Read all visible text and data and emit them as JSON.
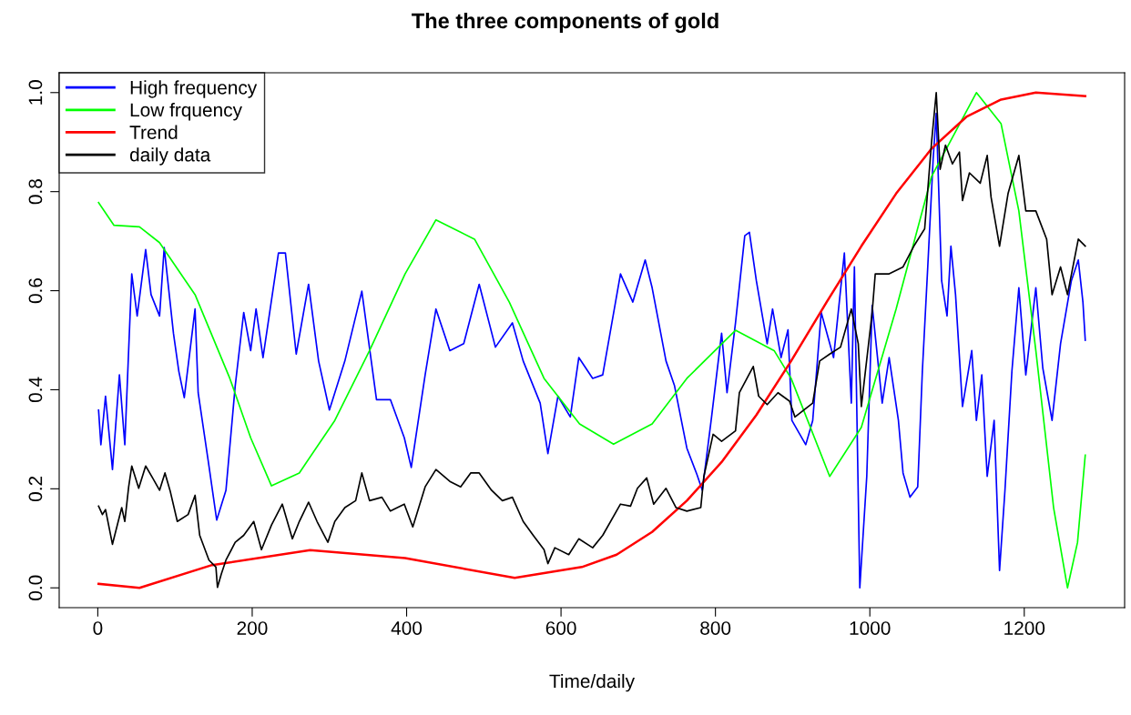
{
  "chart_data": {
    "type": "line",
    "title": "The three components of gold",
    "xlabel": "Time/daily",
    "xlim": [
      -50,
      1330
    ],
    "ylim": [
      -0.04,
      1.04
    ],
    "xticks": [
      0,
      200,
      400,
      600,
      800,
      1000,
      1200
    ],
    "yticks": [
      {
        "value": 0,
        "label": "0.0"
      },
      0.2,
      0.4,
      0.6,
      0.8,
      {
        "value": 1,
        "label": "1.0"
      }
    ],
    "grid": false,
    "legend": "top left",
    "marker": "none",
    "line_style": "solid",
    "series": [
      {
        "name": "High frequency",
        "color": "#0000ff",
        "x": [
          1,
          4,
          10,
          19,
          28,
          35,
          44,
          51,
          62,
          69,
          80,
          86,
          98,
          105,
          112,
          126,
          130,
          144,
          154,
          166,
          178,
          189,
          198,
          205,
          214,
          234,
          243,
          257,
          273,
          286,
          300,
          320,
          342,
          361,
          379,
          397,
          406,
          424,
          438,
          456,
          474,
          494,
          515,
          537,
          551,
          573,
          583,
          596,
          612,
          623,
          641,
          654,
          677,
          693,
          709,
          718,
          736,
          747,
          763,
          776,
          783,
          795,
          808,
          815,
          826,
          838,
          844,
          853,
          867,
          874,
          885,
          894,
          899,
          917,
          926,
          937,
          953,
          967,
          976,
          980,
          987,
          996,
          1003,
          1016,
          1025,
          1037,
          1043,
          1052,
          1062,
          1068,
          1075,
          1082,
          1086,
          1093,
          1100,
          1105,
          1111,
          1120,
          1132,
          1138,
          1145,
          1152,
          1161,
          1168,
          1175,
          1184,
          1193,
          1202,
          1215,
          1224,
          1236,
          1247,
          1261,
          1270,
          1276,
          1279
        ],
        "values": [
          0.359,
          0.289,
          0.387,
          0.239,
          0.43,
          0.289,
          0.634,
          0.549,
          0.683,
          0.592,
          0.549,
          0.687,
          0.514,
          0.437,
          0.384,
          0.563,
          0.394,
          0.246,
          0.137,
          0.197,
          0.408,
          0.556,
          0.479,
          0.563,
          0.465,
          0.676,
          0.676,
          0.472,
          0.613,
          0.458,
          0.359,
          0.458,
          0.599,
          0.38,
          0.38,
          0.303,
          0.243,
          0.43,
          0.563,
          0.479,
          0.493,
          0.613,
          0.486,
          0.535,
          0.458,
          0.373,
          0.271,
          0.387,
          0.345,
          0.465,
          0.423,
          0.43,
          0.634,
          0.577,
          0.662,
          0.606,
          0.458,
          0.408,
          0.282,
          0.229,
          0.197,
          0.345,
          0.514,
          0.394,
          0.535,
          0.711,
          0.718,
          0.62,
          0.493,
          0.563,
          0.465,
          0.521,
          0.338,
          0.289,
          0.338,
          0.556,
          0.465,
          0.676,
          0.373,
          0.648,
          0.0,
          0.225,
          0.57,
          0.373,
          0.465,
          0.338,
          0.232,
          0.183,
          0.204,
          0.437,
          0.648,
          0.866,
          0.958,
          0.62,
          0.549,
          0.69,
          0.592,
          0.366,
          0.479,
          0.338,
          0.43,
          0.225,
          0.338,
          0.035,
          0.197,
          0.437,
          0.606,
          0.43,
          0.606,
          0.444,
          0.338,
          0.493,
          0.62,
          0.662,
          0.577,
          0.5
        ]
      },
      {
        "name": "Low frquency",
        "color": "#00ff00",
        "x": [
          1,
          21,
          54,
          80,
          126,
          171,
          198,
          225,
          261,
          307,
          352,
          398,
          438,
          488,
          533,
          578,
          624,
          668,
          718,
          763,
          826,
          876,
          898,
          948,
          989,
          1034,
          1080,
          1138,
          1170,
          1193,
          1215,
          1238,
          1256,
          1269,
          1279
        ],
        "values": [
          0.778,
          0.732,
          0.729,
          0.697,
          0.592,
          0.423,
          0.303,
          0.206,
          0.232,
          0.338,
          0.479,
          0.634,
          0.743,
          0.704,
          0.577,
          0.423,
          0.331,
          0.29,
          0.331,
          0.423,
          0.52,
          0.479,
          0.423,
          0.225,
          0.324,
          0.563,
          0.831,
          1.0,
          0.937,
          0.761,
          0.479,
          0.162,
          0.0,
          0.092,
          0.268
        ]
      },
      {
        "name": "Trend",
        "color": "#ff0000",
        "x": [
          1,
          54,
          148,
          275,
          398,
          540,
          627,
          672,
          718,
          763,
          808,
          853,
          898,
          944,
          989,
          1034,
          1080,
          1125,
          1170,
          1215,
          1279
        ],
        "values": [
          0.008,
          0.0,
          0.046,
          0.076,
          0.06,
          0.02,
          0.042,
          0.067,
          0.113,
          0.176,
          0.254,
          0.349,
          0.458,
          0.577,
          0.69,
          0.796,
          0.887,
          0.951,
          0.986,
          1.0,
          0.993
        ]
      },
      {
        "name": "daily data",
        "color": "#000000",
        "x": [
          1,
          6,
          10,
          19,
          31,
          35,
          40,
          44,
          53,
          62,
          71,
          80,
          87,
          94,
          103,
          117,
          126,
          132,
          144,
          153,
          155,
          160,
          166,
          178,
          189,
          202,
          212,
          225,
          239,
          252,
          261,
          273,
          284,
          298,
          307,
          320,
          334,
          342,
          352,
          368,
          379,
          397,
          408,
          424,
          438,
          456,
          470,
          483,
          494,
          510,
          524,
          537,
          551,
          564,
          578,
          583,
          592,
          610,
          623,
          641,
          654,
          677,
          690,
          699,
          711,
          720,
          736,
          749,
          763,
          781,
          785,
          797,
          808,
          826,
          831,
          849,
          856,
          867,
          881,
          896,
          903,
          926,
          935,
          948,
          962,
          976,
          985,
          989,
          1003,
          1007,
          1025,
          1043,
          1057,
          1071,
          1080,
          1086,
          1091,
          1098,
          1107,
          1116,
          1120,
          1129,
          1143,
          1152,
          1157,
          1168,
          1179,
          1193,
          1202,
          1215,
          1229,
          1236,
          1247,
          1256,
          1270,
          1279
        ],
        "values": [
          0.165,
          0.148,
          0.158,
          0.088,
          0.162,
          0.134,
          0.204,
          0.246,
          0.201,
          0.246,
          0.222,
          0.197,
          0.232,
          0.194,
          0.134,
          0.148,
          0.187,
          0.106,
          0.056,
          0.042,
          0.001,
          0.028,
          0.056,
          0.092,
          0.106,
          0.134,
          0.077,
          0.127,
          0.169,
          0.099,
          0.134,
          0.173,
          0.134,
          0.092,
          0.134,
          0.162,
          0.176,
          0.232,
          0.176,
          0.183,
          0.155,
          0.169,
          0.123,
          0.204,
          0.239,
          0.215,
          0.204,
          0.232,
          0.232,
          0.197,
          0.176,
          0.183,
          0.134,
          0.106,
          0.077,
          0.049,
          0.081,
          0.067,
          0.099,
          0.081,
          0.106,
          0.169,
          0.165,
          0.201,
          0.222,
          0.169,
          0.201,
          0.162,
          0.155,
          0.162,
          0.225,
          0.31,
          0.296,
          0.317,
          0.394,
          0.447,
          0.387,
          0.37,
          0.394,
          0.377,
          0.345,
          0.373,
          0.458,
          0.472,
          0.486,
          0.563,
          0.493,
          0.366,
          0.556,
          0.634,
          0.634,
          0.648,
          0.69,
          0.725,
          0.901,
          1.0,
          0.845,
          0.894,
          0.856,
          0.88,
          0.782,
          0.838,
          0.817,
          0.873,
          0.789,
          0.69,
          0.796,
          0.873,
          0.761,
          0.761,
          0.704,
          0.592,
          0.648,
          0.592,
          0.704,
          0.69
        ]
      }
    ]
  }
}
